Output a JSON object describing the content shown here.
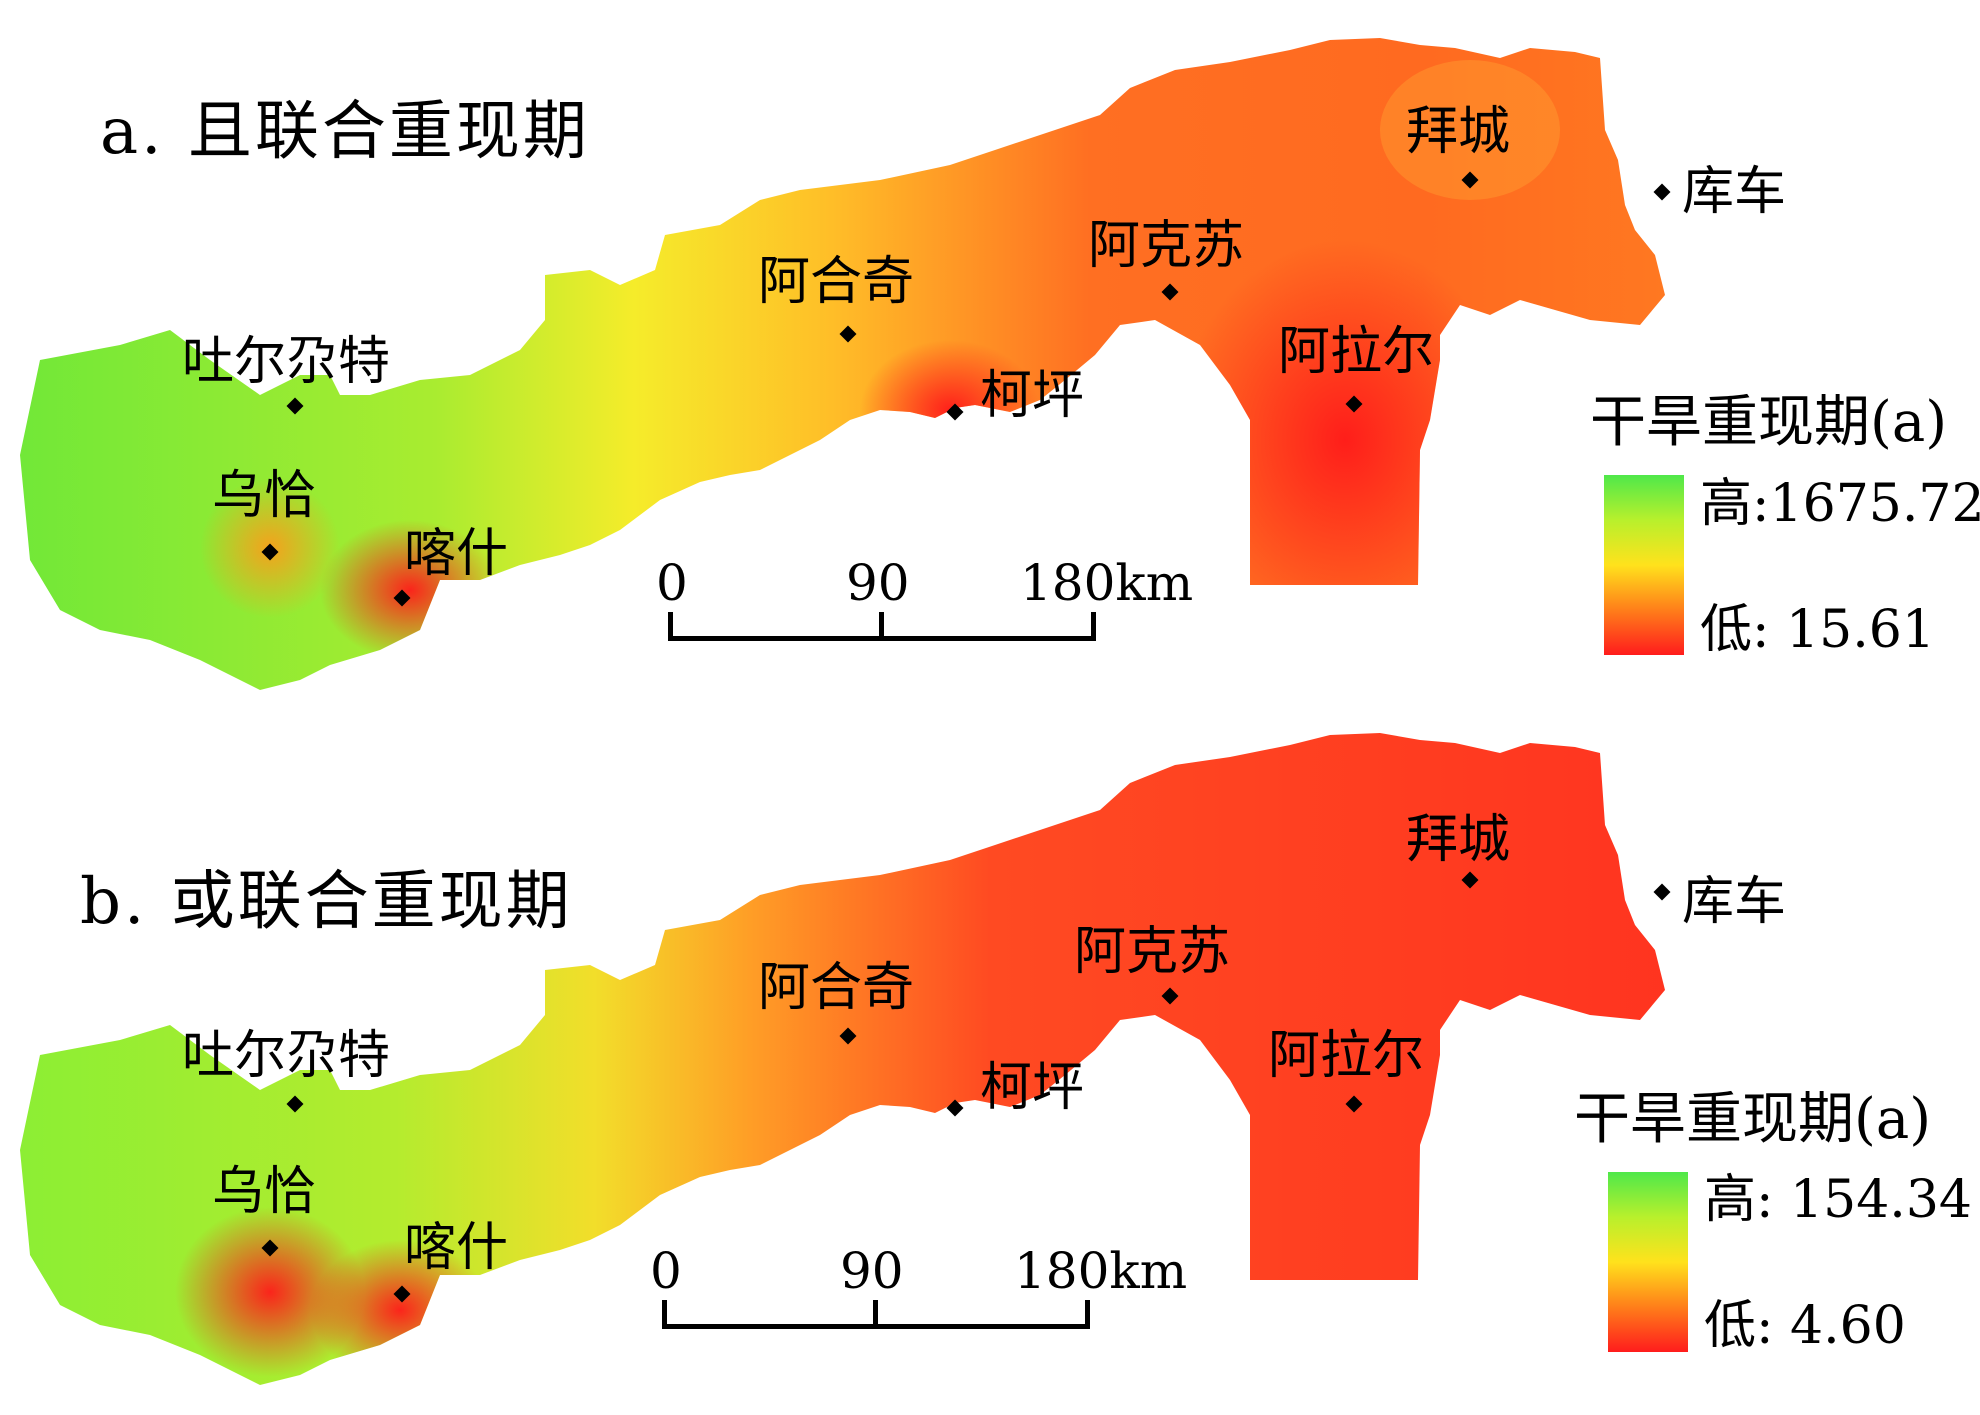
{
  "panels": [
    {
      "id": "a",
      "title": "a. 且联合重现期",
      "legend": {
        "title": "干旱重现期(a)",
        "high": "高:1675.72",
        "low": "低: 15.61"
      },
      "scale": {
        "ticks": [
          "0",
          "90",
          "180km"
        ]
      },
      "cities": [
        "吐尔尕特",
        "乌恰",
        "喀什",
        "阿合奇",
        "柯坪",
        "阿克苏",
        "阿拉尔",
        "拜城",
        "库车"
      ]
    },
    {
      "id": "b",
      "title": "b. 或联合重现期",
      "legend": {
        "title": "干旱重现期(a)",
        "high": "高: 154.34",
        "low": "低: 4.60"
      },
      "scale": {
        "ticks": [
          "0",
          "90",
          "180km"
        ]
      },
      "cities": [
        "吐尔尕特",
        "乌恰",
        "喀什",
        "阿合奇",
        "柯坪",
        "阿克苏",
        "阿拉尔",
        "拜城",
        "库车"
      ]
    }
  ],
  "colors": {
    "high": "#4fe84a",
    "mid": "#ffe21c",
    "low": "#ff1c1c"
  }
}
